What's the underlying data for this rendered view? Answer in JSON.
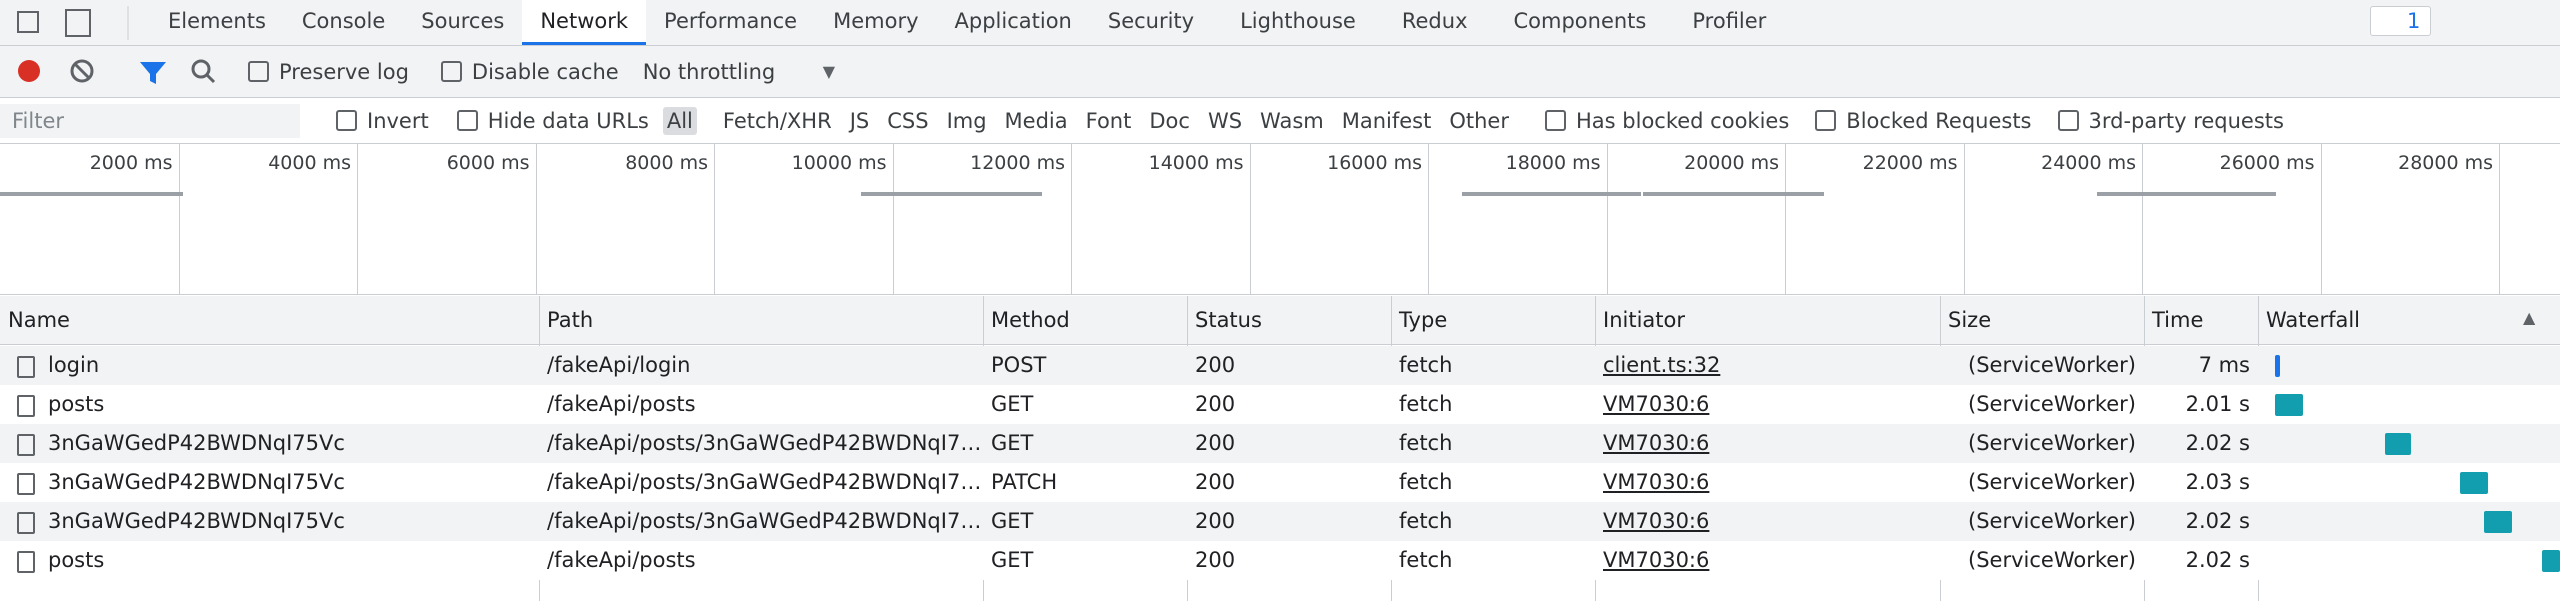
{
  "tabs": {
    "items": [
      "Elements",
      "Console",
      "Sources",
      "Network",
      "Performance",
      "Memory",
      "Application",
      "Security",
      "Lighthouse",
      "Redux",
      "Components",
      "Profiler"
    ],
    "issues": "1"
  },
  "toolbar": {
    "preserve_log": "Preserve log",
    "disable_cache": "Disable cache",
    "throttling": "No throttling"
  },
  "filter": {
    "placeholder": "Filter",
    "invert": "Invert",
    "hide_data_urls": "Hide data URLs",
    "types": [
      "All",
      "Fetch/XHR",
      "JS",
      "CSS",
      "Img",
      "Media",
      "Font",
      "Doc",
      "WS",
      "Wasm",
      "Manifest",
      "Other"
    ],
    "options": [
      "Has blocked cookies",
      "Blocked Requests",
      "3rd-party requests"
    ]
  },
  "timeline": {
    "ticks": [
      "2000 ms",
      "4000 ms",
      "6000 ms",
      "8000 ms",
      "10000 ms",
      "12000 ms",
      "14000 ms",
      "16000 ms",
      "18000 ms",
      "20000 ms",
      "22000 ms",
      "24000 ms",
      "26000 ms",
      "28000 ms"
    ]
  },
  "table": {
    "columns": [
      "Name",
      "Path",
      "Method",
      "Status",
      "Type",
      "Initiator",
      "Size",
      "Time",
      "Waterfall"
    ],
    "rows": [
      [
        "login",
        "/fakeApi/login",
        "POST",
        "200",
        "fetch",
        "client.ts:32",
        "(ServiceWorker)",
        "7 ms"
      ],
      [
        "posts",
        "/fakeApi/posts",
        "GET",
        "200",
        "fetch",
        "VM7030:6",
        "(ServiceWorker)",
        "2.01 s"
      ],
      [
        "3nGaWGedP42BWDNqI75Vc",
        "/fakeApi/posts/3nGaWGedP42BWDNqI7…",
        "GET",
        "200",
        "fetch",
        "VM7030:6",
        "(ServiceWorker)",
        "2.02 s"
      ],
      [
        "3nGaWGedP42BWDNqI75Vc",
        "/fakeApi/posts/3nGaWGedP42BWDNqI7…",
        "PATCH",
        "200",
        "fetch",
        "VM7030:6",
        "(ServiceWorker)",
        "2.03 s"
      ],
      [
        "3nGaWGedP42BWDNqI75Vc",
        "/fakeApi/posts/3nGaWGedP42BWDNqI7…",
        "GET",
        "200",
        "fetch",
        "VM7030:6",
        "(ServiceWorker)",
        "2.02 s"
      ],
      [
        "posts",
        "/fakeApi/posts",
        "GET",
        "200",
        "fetch",
        "VM7030:6",
        "(ServiceWorker)",
        "2.02 s"
      ]
    ]
  }
}
